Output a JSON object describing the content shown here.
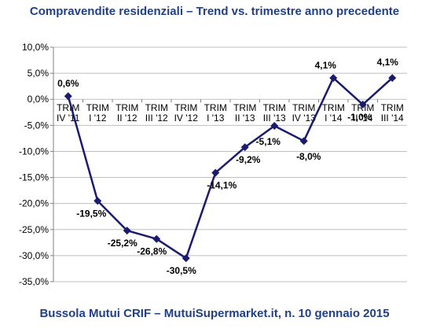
{
  "header": {
    "title": "Compravendite residenziali – Trend vs. trimestre anno precedente"
  },
  "footer": {
    "source": "Bussola Mutui CRIF – MutuiSupermarket.it, n. 10 gennaio 2015"
  },
  "chart_data": {
    "type": "line",
    "title": "Compravendite residenziali – Trend vs. trimestre anno precedente",
    "xlabel": "",
    "ylabel": "",
    "categories": [
      [
        "TRIM",
        "IV '11"
      ],
      [
        "TRIM",
        "I '12"
      ],
      [
        "TRIM",
        "II '12"
      ],
      [
        "TRIM",
        "III '12"
      ],
      [
        "TRIM",
        "IV '12"
      ],
      [
        "TRIM",
        "I '13"
      ],
      [
        "TRIM",
        "II '13"
      ],
      [
        "TRIM",
        "III '13"
      ],
      [
        "TRIM",
        "IV '13"
      ],
      [
        "TRIM",
        "I '14"
      ],
      [
        "TRIM",
        "II '14"
      ],
      [
        "TRIM",
        "III '14"
      ]
    ],
    "values": [
      0.6,
      -19.5,
      -25.2,
      -26.8,
      -30.5,
      -14.1,
      -9.2,
      -5.1,
      -8.0,
      4.1,
      -1.0,
      4.1
    ],
    "data_labels": [
      "0,6%",
      "-19,5%",
      "-25,2%",
      "-26,8%",
      "-30,5%",
      "-14,1%",
      "-9,2%",
      "-5,1%",
      "-8,0%",
      "4,1%",
      "-1,0%",
      "4,1%"
    ],
    "ylim": [
      -35,
      10
    ],
    "yticks": [
      10,
      5,
      0,
      -5,
      -10,
      -15,
      -20,
      -25,
      -30,
      -35
    ],
    "ytick_labels": [
      "10,0%",
      "5,0%",
      "0,0%",
      "-5,0%",
      "-10,0%",
      "-15,0%",
      "-20,0%",
      "-25,0%",
      "-30,0%",
      "-35,0%"
    ],
    "grid": "horizontal",
    "legend": "none",
    "line_color": "#1b1b6e",
    "grid_color": "#bfbfbf"
  }
}
